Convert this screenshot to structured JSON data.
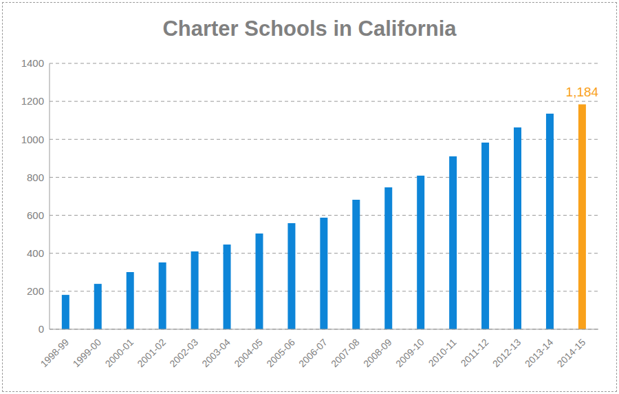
{
  "chart_data": {
    "type": "bar",
    "title": "Charter Schools in California",
    "categories": [
      "1998-99",
      "1999-00",
      "2000-01",
      "2001-02",
      "2002-03",
      "2003-04",
      "2004-05",
      "2005-06",
      "2006-07",
      "2007-08",
      "2008-09",
      "2009-10",
      "2010-11",
      "2011-12",
      "2012-13",
      "2013-14",
      "2014-15"
    ],
    "values": [
      181,
      239,
      301,
      352,
      410,
      446,
      504,
      559,
      588,
      682,
      747,
      809,
      910,
      983,
      1063,
      1135,
      1184
    ],
    "value_labels": [
      null,
      null,
      null,
      null,
      null,
      null,
      null,
      null,
      null,
      null,
      null,
      null,
      null,
      null,
      null,
      null,
      "1,184"
    ],
    "colors": [
      "#0d85d8",
      "#0d85d8",
      "#0d85d8",
      "#0d85d8",
      "#0d85d8",
      "#0d85d8",
      "#0d85d8",
      "#0d85d8",
      "#0d85d8",
      "#0d85d8",
      "#0d85d8",
      "#0d85d8",
      "#0d85d8",
      "#0d85d8",
      "#0d85d8",
      "#0d85d8",
      "#f9a11b"
    ],
    "ylim": [
      0,
      1400
    ],
    "yticks": [
      0,
      200,
      400,
      600,
      800,
      1000,
      1200,
      1400
    ],
    "grid": true
  }
}
